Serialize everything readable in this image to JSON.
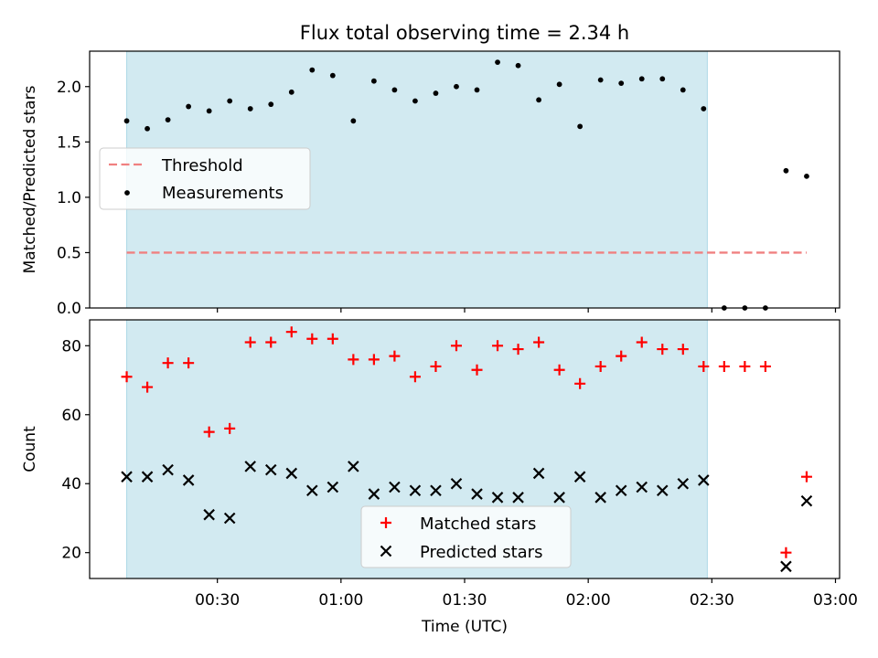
{
  "title": "Flux total observing time = 2.34 h",
  "colors": {
    "span": "#add8e6",
    "threshold": "#f08080",
    "measurement": "#000000",
    "matched": "#ff0000",
    "predicted": "#000000"
  },
  "chart_data": [
    {
      "type": "scatter",
      "ylabel": "Matched/Predicted stars",
      "ylim": [
        0,
        2.32
      ],
      "xlim": [
        -1.0,
        181.0
      ],
      "yticks": [
        0.0,
        0.5,
        1.0,
        1.5,
        2.0
      ],
      "ytick_labels": [
        "0.0",
        "0.5",
        "1.0",
        "1.5",
        "2.0"
      ],
      "xticks": [
        30,
        60,
        90,
        120,
        150,
        180
      ],
      "shaded_span": [
        8.0,
        148.9
      ],
      "legend": {
        "placement": "center-left",
        "entries": [
          "Threshold",
          "Measurements"
        ]
      },
      "threshold": {
        "name": "Threshold",
        "y": 0.5,
        "x": [
          8.0,
          173.0
        ],
        "style": "dashed"
      },
      "series": [
        {
          "name": "Measurements",
          "x": [
            8,
            13,
            18,
            23,
            28,
            33,
            38,
            43,
            48,
            53,
            58,
            63,
            68,
            73,
            78,
            83,
            88,
            93,
            98,
            103,
            108,
            113,
            118,
            123,
            128,
            133,
            138,
            143,
            148,
            153,
            158,
            163,
            168,
            173
          ],
          "y": [
            1.69,
            1.62,
            1.7,
            1.82,
            1.78,
            1.87,
            1.8,
            1.84,
            1.95,
            2.15,
            2.1,
            1.69,
            2.05,
            1.97,
            1.87,
            1.94,
            2.0,
            1.97,
            2.22,
            2.19,
            1.88,
            2.02,
            1.64,
            2.06,
            2.03,
            2.07,
            2.07,
            1.97,
            1.8,
            0.0,
            0.0,
            0.0,
            1.24,
            1.19
          ]
        }
      ]
    },
    {
      "type": "scatter",
      "ylabel": "Count",
      "xlabel": "Time (UTC)",
      "ylim": [
        12.5,
        87.5
      ],
      "xlim": [
        -1.0,
        181.0
      ],
      "yticks": [
        20,
        40,
        60,
        80
      ],
      "ytick_labels": [
        "20",
        "40",
        "60",
        "80"
      ],
      "xticks": [
        30,
        60,
        90,
        120,
        150,
        180
      ],
      "xtick_labels": [
        "00:30",
        "01:00",
        "01:30",
        "02:00",
        "02:30",
        "03:00"
      ],
      "shaded_span": [
        8.0,
        148.9
      ],
      "legend": {
        "placement": "bottom-center",
        "entries": [
          "Matched stars",
          "Predicted stars"
        ]
      },
      "series": [
        {
          "name": "Matched stars",
          "marker": "plus",
          "x": [
            8,
            13,
            18,
            23,
            28,
            33,
            38,
            43,
            48,
            53,
            58,
            63,
            68,
            73,
            78,
            83,
            88,
            93,
            98,
            103,
            108,
            113,
            118,
            123,
            128,
            133,
            138,
            143,
            148,
            153,
            158,
            163,
            168,
            173
          ],
          "y": [
            71,
            68,
            75,
            75,
            55,
            56,
            81,
            81,
            84,
            82,
            82,
            76,
            76,
            77,
            71,
            74,
            80,
            73,
            80,
            79,
            81,
            73,
            69,
            74,
            77,
            81,
            79,
            79,
            74,
            74,
            74,
            74,
            20,
            42
          ]
        },
        {
          "name": "Predicted stars",
          "marker": "x",
          "x": [
            8,
            13,
            18,
            23,
            28,
            33,
            38,
            43,
            48,
            53,
            58,
            63,
            68,
            73,
            78,
            83,
            88,
            93,
            98,
            103,
            108,
            113,
            118,
            123,
            128,
            133,
            138,
            143,
            148,
            168,
            173
          ],
          "y": [
            42,
            42,
            44,
            41,
            31,
            30,
            45,
            44,
            43,
            38,
            39,
            45,
            37,
            39,
            38,
            38,
            40,
            37,
            36,
            36,
            43,
            36,
            42,
            36,
            38,
            39,
            38,
            40,
            41,
            16,
            35
          ]
        }
      ]
    }
  ]
}
